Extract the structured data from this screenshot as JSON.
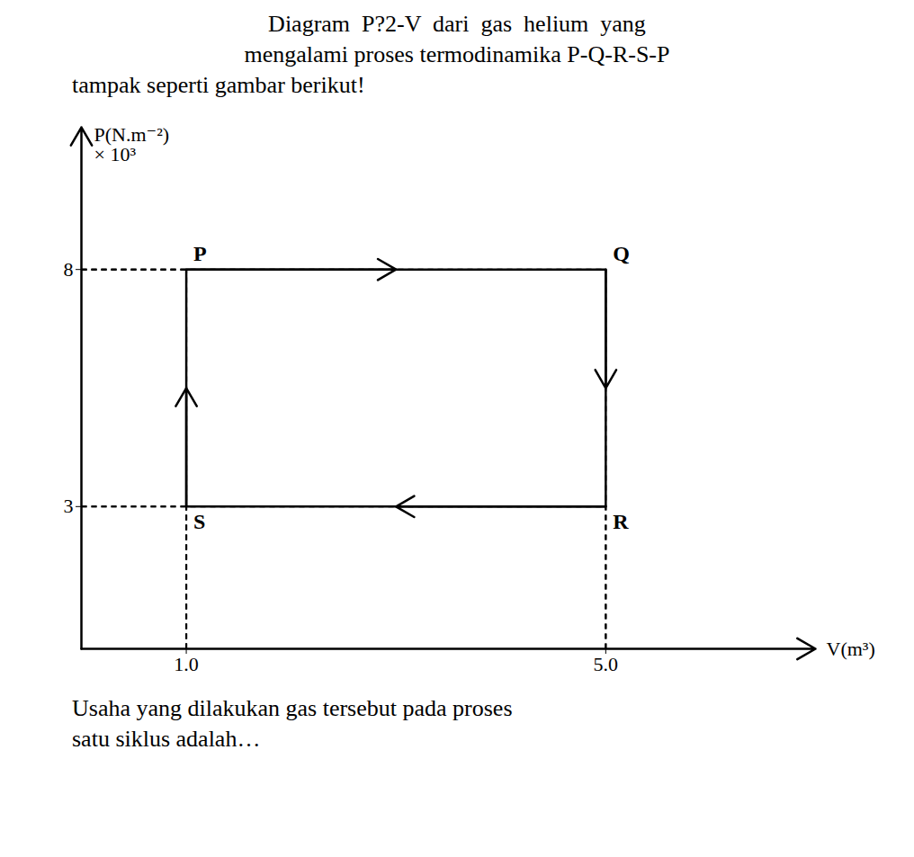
{
  "chart_data": {
    "type": "line",
    "title": [
      "Diagram  P?2-V  dari  gas  helium  yang",
      "mengalami proses termodinamika P-Q-R-S-P"
    ],
    "subtitle": "tampak seperti gambar berikut!",
    "caption": [
      "Usaha yang dilakukan gas tersebut pada proses",
      "satu siklus adalah…"
    ],
    "x": [
      1,
      5,
      5,
      1,
      1
    ],
    "values": [
      8,
      8,
      3,
      3,
      8
    ],
    "color": "#000000",
    "line_style": "solid",
    "annotations": [
      {
        "text": "P",
        "x": 1,
        "y": 8
      },
      {
        "text": "Q",
        "x": 5,
        "y": 8
      },
      {
        "text": "R",
        "x": 5,
        "y": 3
      },
      {
        "text": "S",
        "x": 1,
        "y": 3
      }
    ],
    "xlabel": "V(m³)",
    "ylabel": [
      "P(N.m⁻²)",
      "× 10³"
    ],
    "xlim": [
      0,
      7
    ],
    "ylim": [
      0,
      11
    ],
    "xticks": [
      1,
      5
    ],
    "yticks": [
      3,
      8
    ],
    "grid": false
  }
}
